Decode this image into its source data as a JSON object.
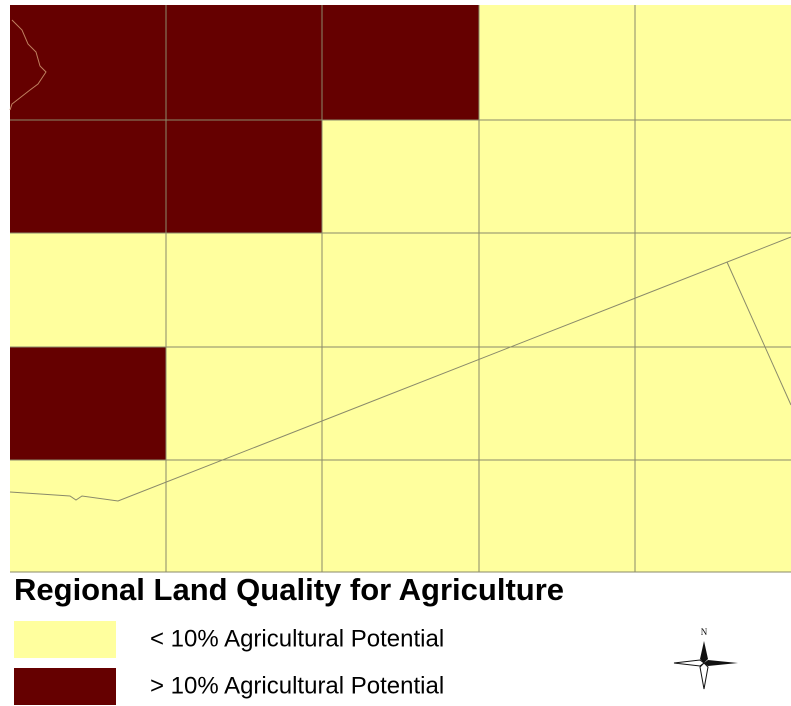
{
  "map": {
    "title": "Regional Land Quality for Agriculture",
    "legend": [
      {
        "label": "< 10% Agricultural Potential",
        "color": "#ffff9e"
      },
      {
        "label": "> 10% Agricultural Potential",
        "color": "#650000"
      }
    ],
    "north_label": "N"
  }
}
